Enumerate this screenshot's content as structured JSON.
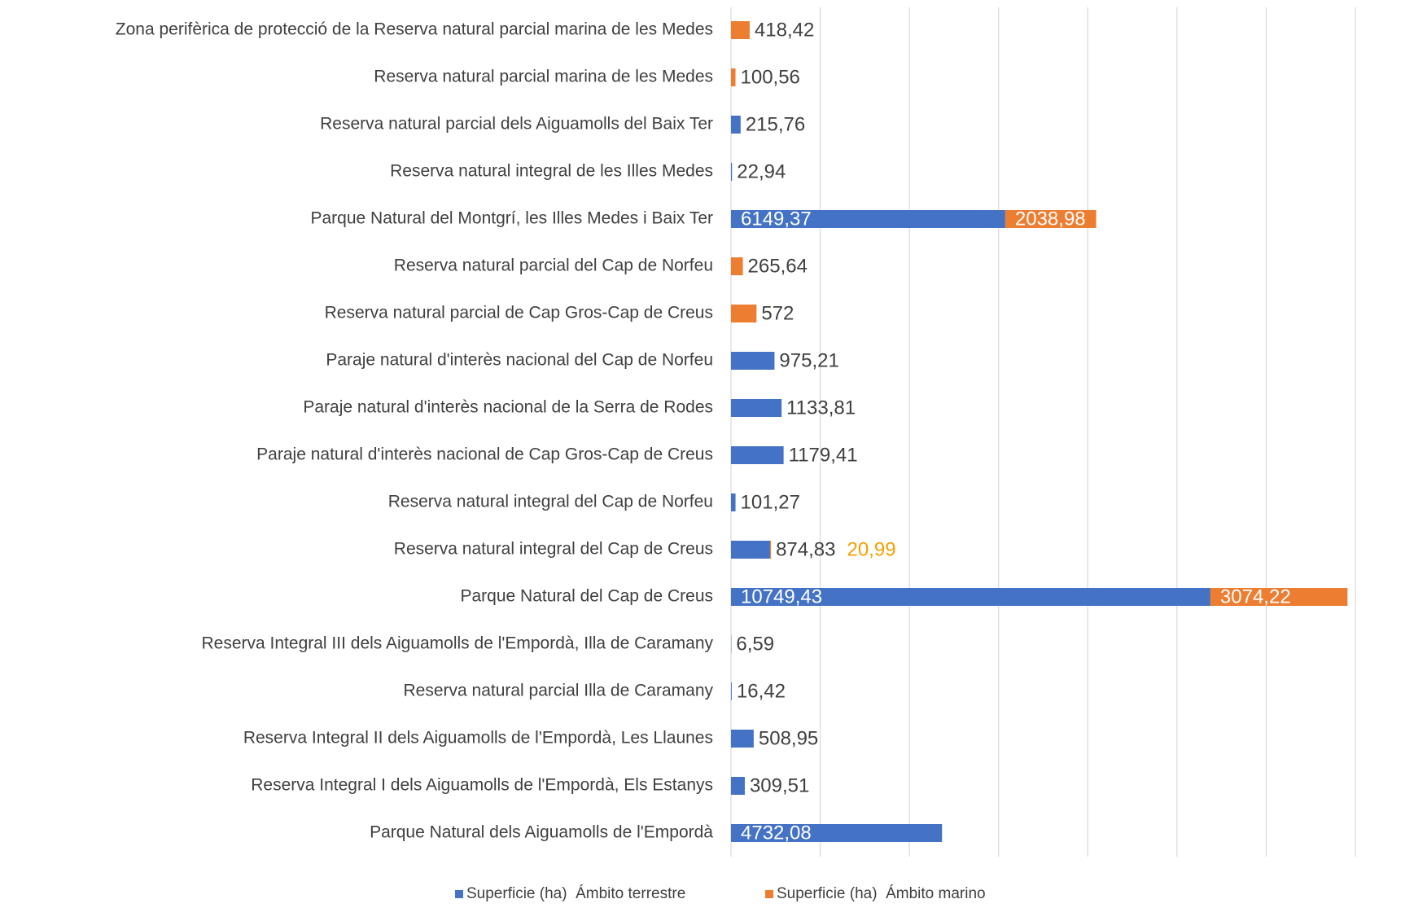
{
  "chart_data": {
    "type": "bar",
    "orientation": "horizontal",
    "stacked": true,
    "categories": [
      "Zona perifèrica de protecció de la Reserva natural parcial marina de les Medes",
      "Reserva natural parcial marina de les Medes",
      "Reserva natural parcial dels Aiguamolls del Baix Ter",
      "Reserva natural integral de les Illes Medes",
      "Parque Natural del Montgrí, les Illes Medes i Baix Ter",
      "Reserva natural parcial del Cap de Norfeu",
      "Reserva natural parcial de Cap Gros-Cap de Creus",
      "Paraje natural d'interès nacional del Cap de Norfeu",
      "Paraje natural d'interès nacional de la Serra de Rodes",
      "Paraje natural d'interès nacional de Cap Gros-Cap de Creus",
      "Reserva natural integral del Cap de Norfeu",
      "Reserva natural integral del Cap de Creus",
      "Parque Natural del Cap de Creus",
      "Reserva Integral III dels Aiguamolls de l'Empordà, Illa de Caramany",
      "Reserva natural parcial Illa de Caramany",
      "Reserva Integral II dels Aiguamolls de l'Empordà, Les Llaunes",
      "Reserva Integral I dels Aiguamolls de l'Empordà, Els Estanys",
      "Parque Natural dels Aiguamolls de l'Empordà"
    ],
    "series": [
      {
        "name": "Superficie (ha)  Ámbito terrestre",
        "color": "#4472c4",
        "values": [
          null,
          null,
          215.76,
          22.94,
          6149.37,
          null,
          null,
          975.21,
          1133.81,
          1179.41,
          101.27,
          874.83,
          10749.43,
          6.59,
          16.42,
          508.95,
          309.51,
          4732.08
        ],
        "value_labels": [
          null,
          null,
          "215,76",
          "22,94",
          "6149,37",
          null,
          null,
          "975,21",
          "1133,81",
          "1179,41",
          "101,27",
          "874,83",
          "10749,43",
          "6,59",
          "16,42",
          "508,95",
          "309,51",
          "4732,08"
        ]
      },
      {
        "name": "Superficie (ha)  Ámbito marino",
        "color": "#ed7d31",
        "values": [
          418.42,
          100.56,
          null,
          null,
          2038.98,
          265.64,
          572,
          null,
          null,
          null,
          null,
          20.99,
          3074.22,
          null,
          null,
          null,
          null,
          null
        ],
        "value_labels": [
          "418,42",
          "100,56",
          null,
          null,
          "2038,98",
          "265,64",
          "572",
          null,
          null,
          null,
          null,
          "20,99",
          "3074,22",
          null,
          null,
          null,
          null,
          null
        ]
      }
    ],
    "xlim": [
      0,
      14000
    ],
    "xticks": [
      0,
      2000,
      4000,
      6000,
      8000,
      10000,
      12000,
      14000
    ],
    "grid": true,
    "legend": "bottom"
  }
}
